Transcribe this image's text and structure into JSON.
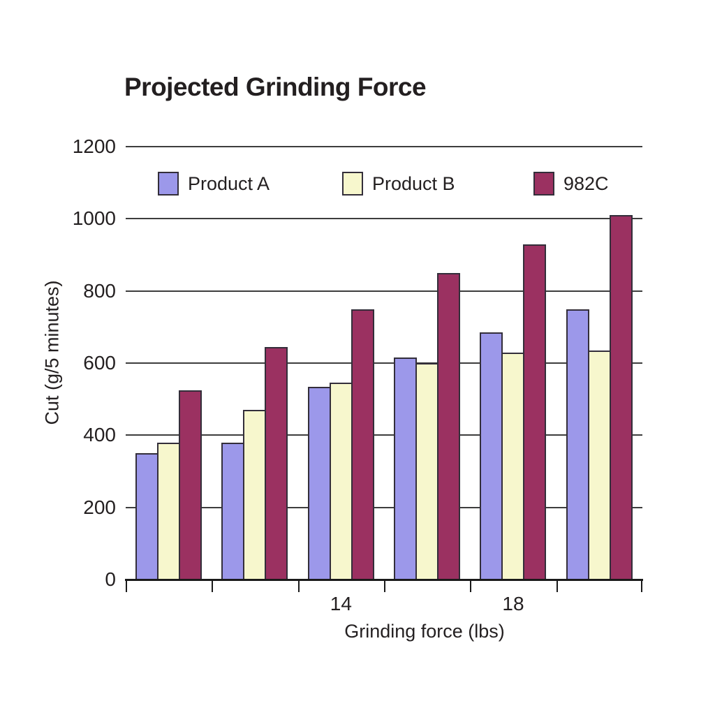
{
  "title": "Projected Grinding Force",
  "axes": {
    "x_title": "Grinding force (lbs)",
    "y_title": "Cut (g/5 minutes)"
  },
  "colors": {
    "product_a": "#9c98ea",
    "product_b": "#f7f7cd",
    "c982": "#9b3161",
    "bar_border": "#332e3a",
    "gridline": "#3d3d3d",
    "axis": "#1a1a1a",
    "text": "#231f20",
    "background": "#ffffff"
  },
  "chart_data": {
    "type": "bar",
    "title": "Projected Grinding Force",
    "xlabel": "Grinding force (lbs)",
    "ylabel": "Cut (g/5 minutes)",
    "ylim": [
      0,
      1200
    ],
    "y_ticks": [
      0,
      200,
      400,
      600,
      800,
      1000,
      1200
    ],
    "grid": "horizontal",
    "legend_position": "top-inside",
    "groups": 6,
    "x_tick_labels": [
      "",
      "",
      "14",
      "",
      "18",
      ""
    ],
    "series": [
      {
        "name": "Product A",
        "color": "#9c98ea",
        "values": [
          350,
          380,
          535,
          615,
          685,
          750
        ]
      },
      {
        "name": "Product B",
        "color": "#f7f7cd",
        "values": [
          380,
          470,
          545,
          600,
          630,
          635
        ]
      },
      {
        "name": "982C",
        "color": "#9b3161",
        "values": [
          525,
          645,
          750,
          850,
          930,
          1010
        ]
      }
    ]
  },
  "legend_items": [
    "Product A",
    "Product B",
    "982C"
  ]
}
